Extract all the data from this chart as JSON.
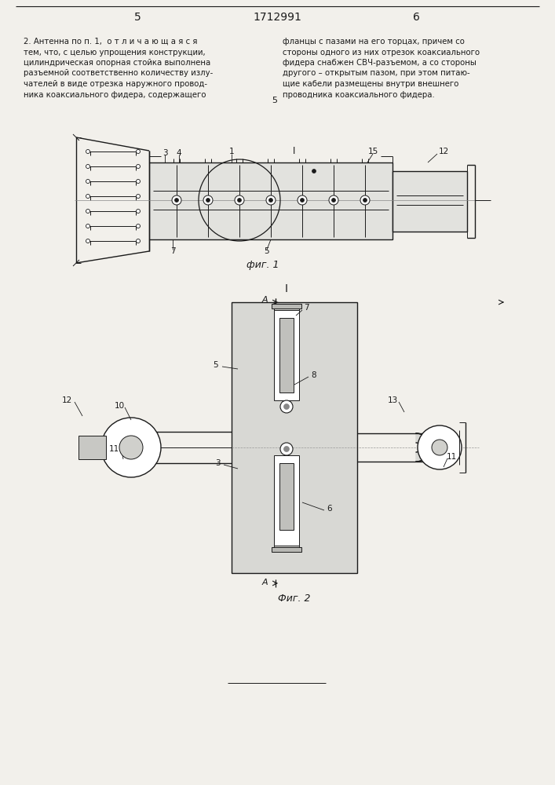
{
  "page_width": 7.07,
  "page_height": 10.0,
  "bg_color": "#f2f0eb",
  "line_color": "#1a1a1a",
  "header_page_left": "5",
  "header_patent": "1712991",
  "header_page_right": "6",
  "text_left_col_lines": [
    "2. Антенна по п. 1,  о т л и ч а ю щ а я с я",
    "тем, что, с целью упрощения конструкции,",
    "цилиндрическая опорная стойка выполнена",
    "разъемной соответственно количеству излу-",
    "чателей в виде отрезка наружного провод-",
    "ника коаксиального фидера, содержащего"
  ],
  "text_right_col_lines": [
    "фланцы с пазами на его торцах, причем со",
    "стороны одного из них отрезок коаксиального",
    "фидера снабжен СВЧ-разъемом, а со стороны",
    "другого – открытым пазом, при этом питаю-",
    "щие кабели размещены внутри внешнего",
    "проводника коаксиального фидера."
  ],
  "fig1_caption": "фиг. 1",
  "fig2_caption": "Фиг. 2"
}
